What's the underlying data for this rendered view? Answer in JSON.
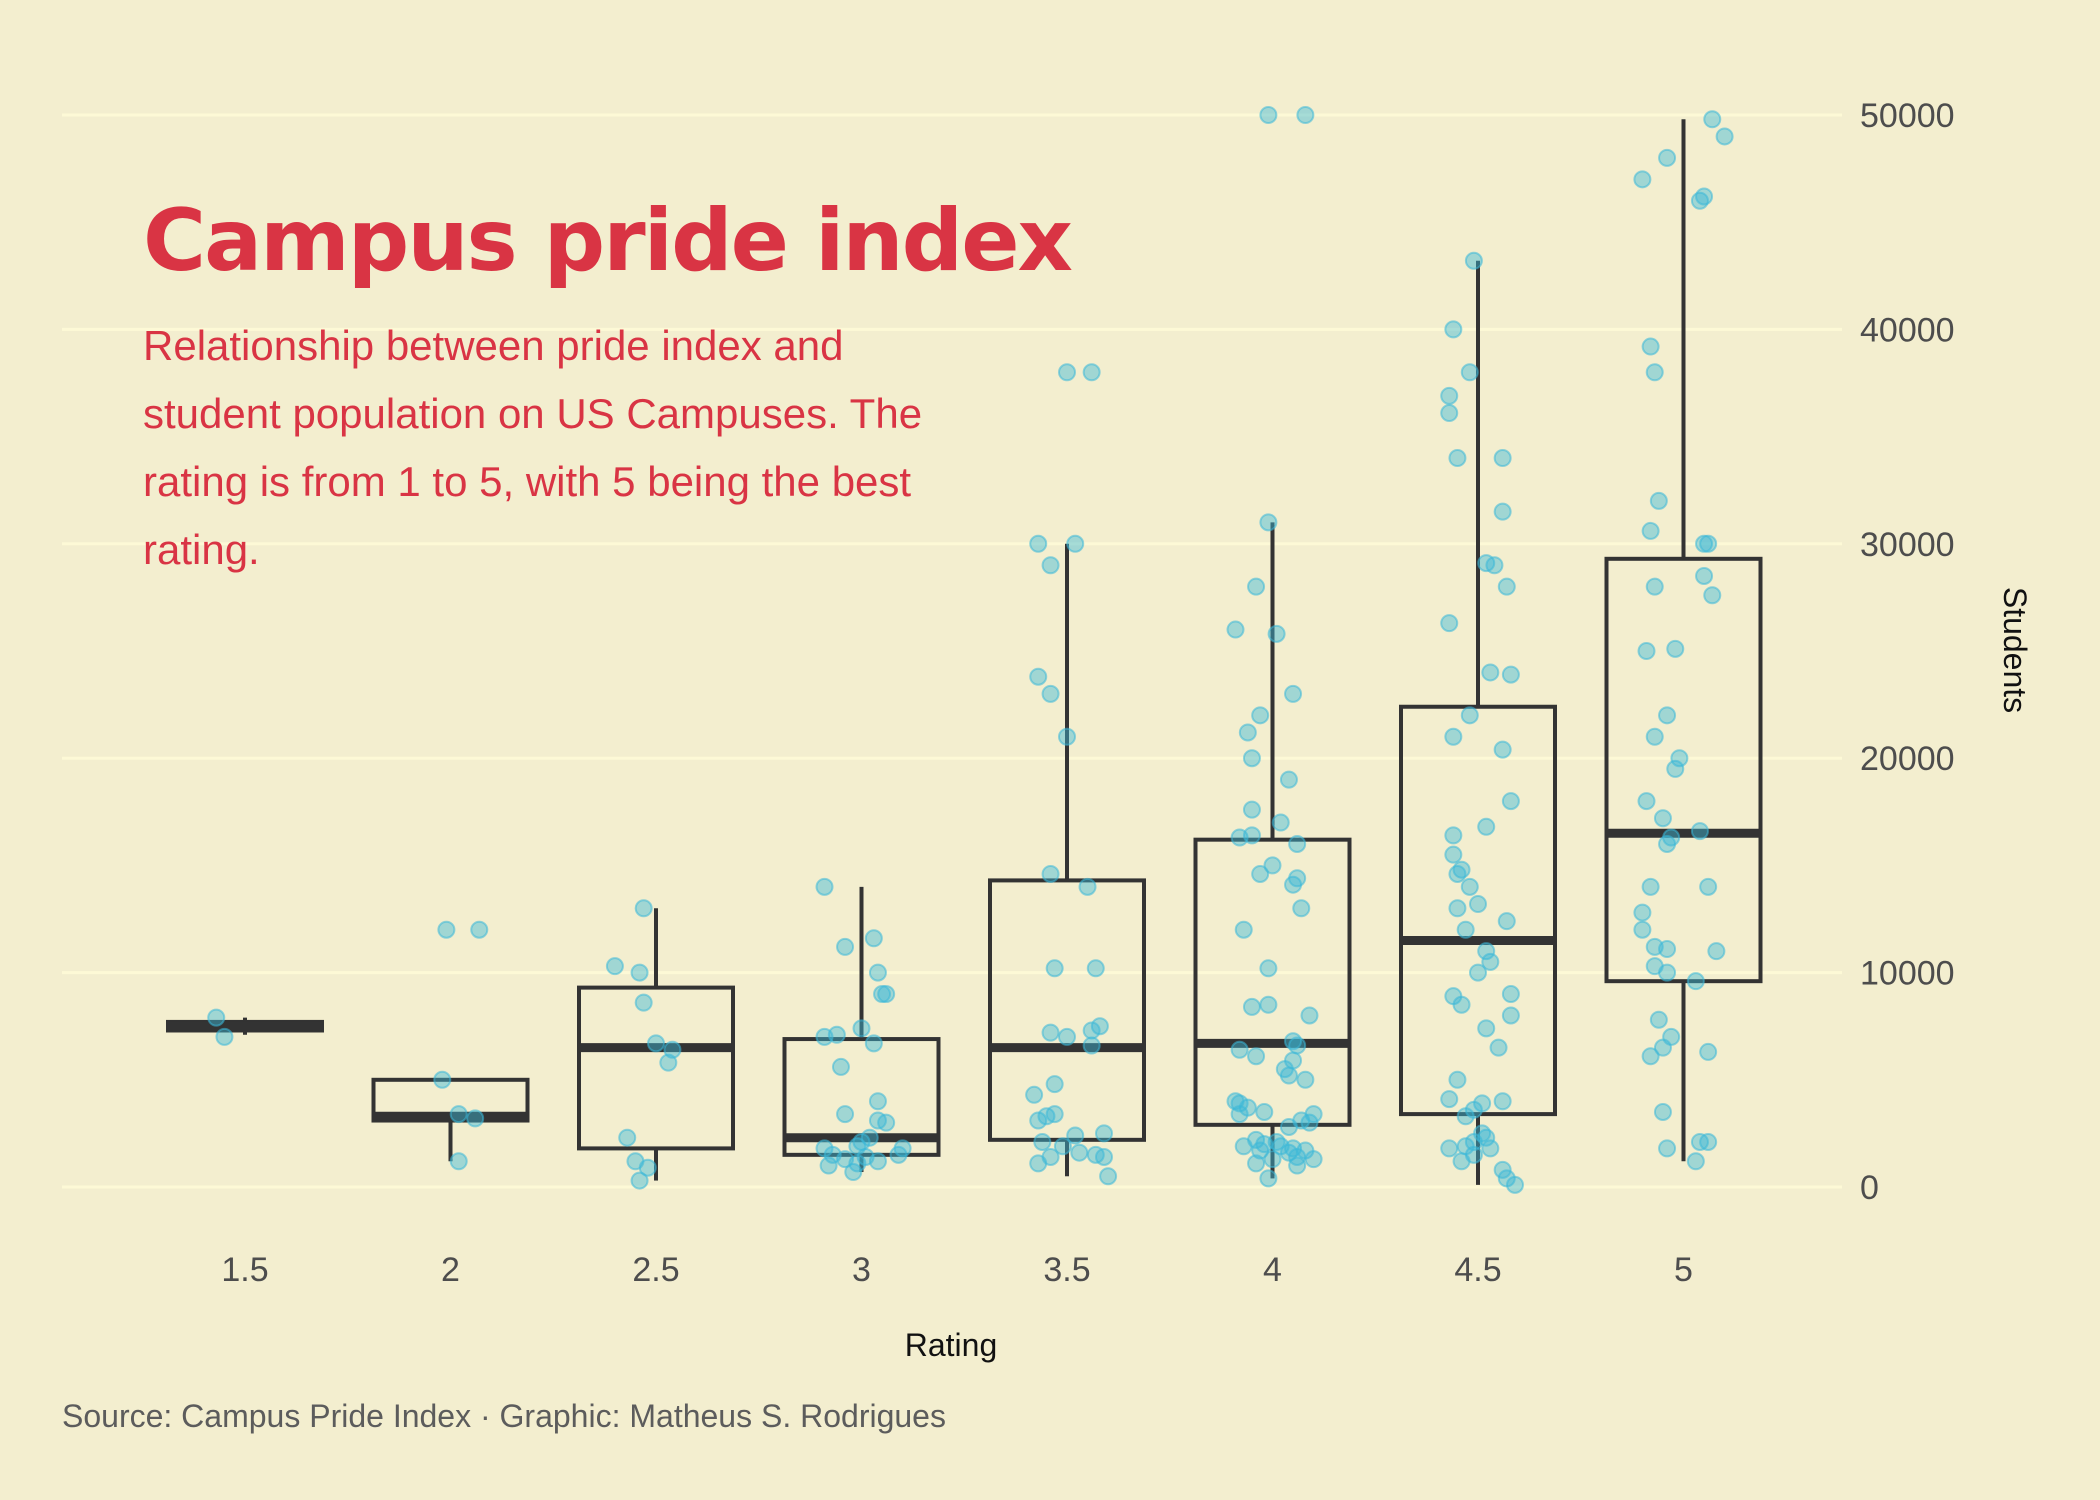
{
  "title": "Campus pride index",
  "subtitle": "Relationship between pride index and student population on US Campuses. The rating is from 1 to 5, with 5 being the best rating.",
  "caption": "Source: Campus Pride Index · Graphic: Matheus S. Rodrigues",
  "colors": {
    "background": "#f3eecf",
    "grid": "#fdf9d6",
    "title": "#d93444",
    "points": "#3bb8d8",
    "box": "#333333"
  },
  "chart_data": {
    "type": "box",
    "xlabel": "Rating",
    "ylabel": "Students",
    "y_axis_position": "right",
    "ylim": [
      0,
      50000
    ],
    "yticks": [
      "0",
      "10000",
      "20000",
      "30000",
      "40000",
      "50000"
    ],
    "categories": [
      "1.5",
      "2",
      "2.5",
      "3",
      "3.5",
      "4",
      "4.5",
      "5"
    ],
    "grid": "horizontal",
    "boxes": [
      {
        "category": "1.5",
        "lower_whisker": 7100,
        "q1": 7300,
        "median": 7500,
        "q3": 7700,
        "upper_whisker": 7900
      },
      {
        "category": "2",
        "lower_whisker": 1200,
        "q1": 3100,
        "median": 3300,
        "q3": 5000,
        "upper_whisker": 5000
      },
      {
        "category": "2.5",
        "lower_whisker": 300,
        "q1": 1800,
        "median": 6500,
        "q3": 9300,
        "upper_whisker": 13000
      },
      {
        "category": "3",
        "lower_whisker": 700,
        "q1": 1500,
        "median": 2300,
        "q3": 6900,
        "upper_whisker": 14000
      },
      {
        "category": "3.5",
        "lower_whisker": 500,
        "q1": 2200,
        "median": 6500,
        "q3": 14300,
        "upper_whisker": 30000
      },
      {
        "category": "4",
        "lower_whisker": 400,
        "q1": 2900,
        "median": 6700,
        "q3": 16200,
        "upper_whisker": 31000
      },
      {
        "category": "4.5",
        "lower_whisker": 100,
        "q1": 3400,
        "median": 11500,
        "q3": 22400,
        "upper_whisker": 43200
      },
      {
        "category": "5",
        "lower_whisker": 1200,
        "q1": 9600,
        "median": 16500,
        "q3": 29300,
        "upper_whisker": 49800
      }
    ],
    "points": [
      {
        "x": 1.43,
        "y": 7900
      },
      {
        "x": 1.45,
        "y": 7000
      },
      {
        "x": 1.99,
        "y": 12000
      },
      {
        "x": 2.07,
        "y": 12000
      },
      {
        "x": 1.98,
        "y": 5000
      },
      {
        "x": 2.02,
        "y": 3400
      },
      {
        "x": 2.06,
        "y": 3200
      },
      {
        "x": 2.02,
        "y": 1200
      },
      {
        "x": 2.47,
        "y": 13000
      },
      {
        "x": 2.4,
        "y": 10300
      },
      {
        "x": 2.46,
        "y": 10000
      },
      {
        "x": 2.47,
        "y": 8600
      },
      {
        "x": 2.5,
        "y": 6700
      },
      {
        "x": 2.54,
        "y": 6400
      },
      {
        "x": 2.53,
        "y": 5800
      },
      {
        "x": 2.43,
        "y": 2300
      },
      {
        "x": 2.45,
        "y": 1200
      },
      {
        "x": 2.48,
        "y": 900
      },
      {
        "x": 2.46,
        "y": 300
      },
      {
        "x": 2.91,
        "y": 14000
      },
      {
        "x": 3.03,
        "y": 11600
      },
      {
        "x": 2.96,
        "y": 11200
      },
      {
        "x": 3.04,
        "y": 10000
      },
      {
        "x": 3.05,
        "y": 9000
      },
      {
        "x": 3.06,
        "y": 9000
      },
      {
        "x": 3.0,
        "y": 7400
      },
      {
        "x": 2.91,
        "y": 7000
      },
      {
        "x": 2.94,
        "y": 7100
      },
      {
        "x": 3.03,
        "y": 6700
      },
      {
        "x": 2.95,
        "y": 5600
      },
      {
        "x": 3.04,
        "y": 4000
      },
      {
        "x": 2.96,
        "y": 3400
      },
      {
        "x": 3.04,
        "y": 3100
      },
      {
        "x": 3.06,
        "y": 3000
      },
      {
        "x": 3.02,
        "y": 2300
      },
      {
        "x": 3.0,
        "y": 2100
      },
      {
        "x": 2.99,
        "y": 1900
      },
      {
        "x": 2.91,
        "y": 1800
      },
      {
        "x": 3.1,
        "y": 1800
      },
      {
        "x": 2.93,
        "y": 1500
      },
      {
        "x": 2.96,
        "y": 1300
      },
      {
        "x": 3.01,
        "y": 1400
      },
      {
        "x": 3.09,
        "y": 1500
      },
      {
        "x": 2.92,
        "y": 1000
      },
      {
        "x": 2.99,
        "y": 1100
      },
      {
        "x": 3.04,
        "y": 1200
      },
      {
        "x": 2.98,
        "y": 700
      },
      {
        "x": 3.5,
        "y": 38000
      },
      {
        "x": 3.56,
        "y": 38000
      },
      {
        "x": 3.43,
        "y": 30000
      },
      {
        "x": 3.52,
        "y": 30000
      },
      {
        "x": 3.46,
        "y": 29000
      },
      {
        "x": 3.43,
        "y": 23800
      },
      {
        "x": 3.46,
        "y": 23000
      },
      {
        "x": 3.5,
        "y": 21000
      },
      {
        "x": 3.46,
        "y": 14600
      },
      {
        "x": 3.55,
        "y": 14000
      },
      {
        "x": 3.47,
        "y": 10200
      },
      {
        "x": 3.57,
        "y": 10200
      },
      {
        "x": 3.46,
        "y": 7200
      },
      {
        "x": 3.5,
        "y": 7000
      },
      {
        "x": 3.56,
        "y": 7300
      },
      {
        "x": 3.58,
        "y": 7500
      },
      {
        "x": 3.56,
        "y": 6600
      },
      {
        "x": 3.47,
        "y": 4800
      },
      {
        "x": 3.42,
        "y": 4300
      },
      {
        "x": 3.47,
        "y": 3400
      },
      {
        "x": 3.43,
        "y": 3100
      },
      {
        "x": 3.45,
        "y": 3300
      },
      {
        "x": 3.52,
        "y": 2400
      },
      {
        "x": 3.59,
        "y": 2500
      },
      {
        "x": 3.44,
        "y": 2100
      },
      {
        "x": 3.49,
        "y": 1900
      },
      {
        "x": 3.53,
        "y": 1600
      },
      {
        "x": 3.57,
        "y": 1500
      },
      {
        "x": 3.59,
        "y": 1400
      },
      {
        "x": 3.46,
        "y": 1400
      },
      {
        "x": 3.43,
        "y": 1100
      },
      {
        "x": 3.6,
        "y": 500
      },
      {
        "x": 3.99,
        "y": 50000
      },
      {
        "x": 4.08,
        "y": 50000
      },
      {
        "x": 3.99,
        "y": 31000
      },
      {
        "x": 3.96,
        "y": 28000
      },
      {
        "x": 3.91,
        "y": 26000
      },
      {
        "x": 4.01,
        "y": 25800
      },
      {
        "x": 4.05,
        "y": 23000
      },
      {
        "x": 3.97,
        "y": 22000
      },
      {
        "x": 3.94,
        "y": 21200
      },
      {
        "x": 3.95,
        "y": 20000
      },
      {
        "x": 4.04,
        "y": 19000
      },
      {
        "x": 3.95,
        "y": 17600
      },
      {
        "x": 4.02,
        "y": 17000
      },
      {
        "x": 3.92,
        "y": 16300
      },
      {
        "x": 3.95,
        "y": 16400
      },
      {
        "x": 4.06,
        "y": 16000
      },
      {
        "x": 4.0,
        "y": 15000
      },
      {
        "x": 3.97,
        "y": 14600
      },
      {
        "x": 4.06,
        "y": 14400
      },
      {
        "x": 4.05,
        "y": 14100
      },
      {
        "x": 4.07,
        "y": 13000
      },
      {
        "x": 3.93,
        "y": 12000
      },
      {
        "x": 3.99,
        "y": 10200
      },
      {
        "x": 3.95,
        "y": 8400
      },
      {
        "x": 3.99,
        "y": 8500
      },
      {
        "x": 4.09,
        "y": 8000
      },
      {
        "x": 4.05,
        "y": 6800
      },
      {
        "x": 4.06,
        "y": 6600
      },
      {
        "x": 3.92,
        "y": 6400
      },
      {
        "x": 3.96,
        "y": 6100
      },
      {
        "x": 4.05,
        "y": 5900
      },
      {
        "x": 4.04,
        "y": 5200
      },
      {
        "x": 4.03,
        "y": 5500
      },
      {
        "x": 4.08,
        "y": 5000
      },
      {
        "x": 3.91,
        "y": 4000
      },
      {
        "x": 3.92,
        "y": 3900
      },
      {
        "x": 3.94,
        "y": 3700
      },
      {
        "x": 3.92,
        "y": 3400
      },
      {
        "x": 3.98,
        "y": 3500
      },
      {
        "x": 4.1,
        "y": 3400
      },
      {
        "x": 4.07,
        "y": 3100
      },
      {
        "x": 4.09,
        "y": 3000
      },
      {
        "x": 4.04,
        "y": 2800
      },
      {
        "x": 3.96,
        "y": 2200
      },
      {
        "x": 3.98,
        "y": 2000
      },
      {
        "x": 4.01,
        "y": 2100
      },
      {
        "x": 3.93,
        "y": 1900
      },
      {
        "x": 3.97,
        "y": 1700
      },
      {
        "x": 4.02,
        "y": 1900
      },
      {
        "x": 4.05,
        "y": 1800
      },
      {
        "x": 4.04,
        "y": 1600
      },
      {
        "x": 4.08,
        "y": 1700
      },
      {
        "x": 4.06,
        "y": 1400
      },
      {
        "x": 4.1,
        "y": 1300
      },
      {
        "x": 3.96,
        "y": 1100
      },
      {
        "x": 4.0,
        "y": 1300
      },
      {
        "x": 4.06,
        "y": 1000
      },
      {
        "x": 3.99,
        "y": 400
      },
      {
        "x": 4.49,
        "y": 43200
      },
      {
        "x": 4.44,
        "y": 40000
      },
      {
        "x": 4.48,
        "y": 38000
      },
      {
        "x": 4.43,
        "y": 36900
      },
      {
        "x": 4.43,
        "y": 36100
      },
      {
        "x": 4.45,
        "y": 34000
      },
      {
        "x": 4.56,
        "y": 34000
      },
      {
        "x": 4.56,
        "y": 31500
      },
      {
        "x": 4.52,
        "y": 29100
      },
      {
        "x": 4.54,
        "y": 29000
      },
      {
        "x": 4.57,
        "y": 28000
      },
      {
        "x": 4.43,
        "y": 26300
      },
      {
        "x": 4.53,
        "y": 24000
      },
      {
        "x": 4.58,
        "y": 23900
      },
      {
        "x": 4.48,
        "y": 22000
      },
      {
        "x": 4.44,
        "y": 21000
      },
      {
        "x": 4.56,
        "y": 20400
      },
      {
        "x": 4.58,
        "y": 18000
      },
      {
        "x": 4.52,
        "y": 16800
      },
      {
        "x": 4.44,
        "y": 16400
      },
      {
        "x": 4.44,
        "y": 15500
      },
      {
        "x": 4.46,
        "y": 14800
      },
      {
        "x": 4.45,
        "y": 14600
      },
      {
        "x": 4.48,
        "y": 14000
      },
      {
        "x": 4.45,
        "y": 13000
      },
      {
        "x": 4.5,
        "y": 13200
      },
      {
        "x": 4.57,
        "y": 12400
      },
      {
        "x": 4.47,
        "y": 12000
      },
      {
        "x": 4.52,
        "y": 11000
      },
      {
        "x": 4.53,
        "y": 10500
      },
      {
        "x": 4.5,
        "y": 10000
      },
      {
        "x": 4.58,
        "y": 9000
      },
      {
        "x": 4.44,
        "y": 8900
      },
      {
        "x": 4.46,
        "y": 8500
      },
      {
        "x": 4.58,
        "y": 8000
      },
      {
        "x": 4.52,
        "y": 7400
      },
      {
        "x": 4.55,
        "y": 6500
      },
      {
        "x": 4.45,
        "y": 5000
      },
      {
        "x": 4.43,
        "y": 4100
      },
      {
        "x": 4.49,
        "y": 3600
      },
      {
        "x": 4.51,
        "y": 3900
      },
      {
        "x": 4.56,
        "y": 4000
      },
      {
        "x": 4.47,
        "y": 3300
      },
      {
        "x": 4.51,
        "y": 2500
      },
      {
        "x": 4.49,
        "y": 2100
      },
      {
        "x": 4.47,
        "y": 1900
      },
      {
        "x": 4.43,
        "y": 1800
      },
      {
        "x": 4.52,
        "y": 2300
      },
      {
        "x": 4.53,
        "y": 1800
      },
      {
        "x": 4.46,
        "y": 1200
      },
      {
        "x": 4.49,
        "y": 1500
      },
      {
        "x": 4.56,
        "y": 800
      },
      {
        "x": 4.57,
        "y": 400
      },
      {
        "x": 4.59,
        "y": 100
      },
      {
        "x": 4.9,
        "y": 47000
      },
      {
        "x": 4.96,
        "y": 48000
      },
      {
        "x": 5.07,
        "y": 49800
      },
      {
        "x": 5.1,
        "y": 49000
      },
      {
        "x": 5.04,
        "y": 46000
      },
      {
        "x": 5.05,
        "y": 46200
      },
      {
        "x": 4.92,
        "y": 39200
      },
      {
        "x": 4.93,
        "y": 38000
      },
      {
        "x": 4.94,
        "y": 32000
      },
      {
        "x": 4.92,
        "y": 30600
      },
      {
        "x": 5.05,
        "y": 30000
      },
      {
        "x": 5.06,
        "y": 30000
      },
      {
        "x": 5.05,
        "y": 28500
      },
      {
        "x": 5.07,
        "y": 27600
      },
      {
        "x": 4.93,
        "y": 28000
      },
      {
        "x": 4.91,
        "y": 25000
      },
      {
        "x": 4.98,
        "y": 25100
      },
      {
        "x": 4.96,
        "y": 22000
      },
      {
        "x": 4.93,
        "y": 21000
      },
      {
        "x": 4.99,
        "y": 20000
      },
      {
        "x": 4.98,
        "y": 19500
      },
      {
        "x": 4.91,
        "y": 18000
      },
      {
        "x": 4.95,
        "y": 17200
      },
      {
        "x": 5.04,
        "y": 16600
      },
      {
        "x": 4.97,
        "y": 16300
      },
      {
        "x": 4.96,
        "y": 16000
      },
      {
        "x": 4.92,
        "y": 14000
      },
      {
        "x": 5.06,
        "y": 14000
      },
      {
        "x": 4.9,
        "y": 12800
      },
      {
        "x": 4.9,
        "y": 12000
      },
      {
        "x": 4.93,
        "y": 11200
      },
      {
        "x": 4.96,
        "y": 11100
      },
      {
        "x": 5.08,
        "y": 11000
      },
      {
        "x": 4.93,
        "y": 10300
      },
      {
        "x": 4.96,
        "y": 10000
      },
      {
        "x": 5.03,
        "y": 9600
      },
      {
        "x": 4.94,
        "y": 7800
      },
      {
        "x": 4.97,
        "y": 7000
      },
      {
        "x": 4.95,
        "y": 6500
      },
      {
        "x": 4.92,
        "y": 6100
      },
      {
        "x": 5.06,
        "y": 6300
      },
      {
        "x": 4.95,
        "y": 3500
      },
      {
        "x": 5.04,
        "y": 2100
      },
      {
        "x": 5.06,
        "y": 2100
      },
      {
        "x": 4.96,
        "y": 1800
      },
      {
        "x": 5.03,
        "y": 1200
      }
    ]
  }
}
